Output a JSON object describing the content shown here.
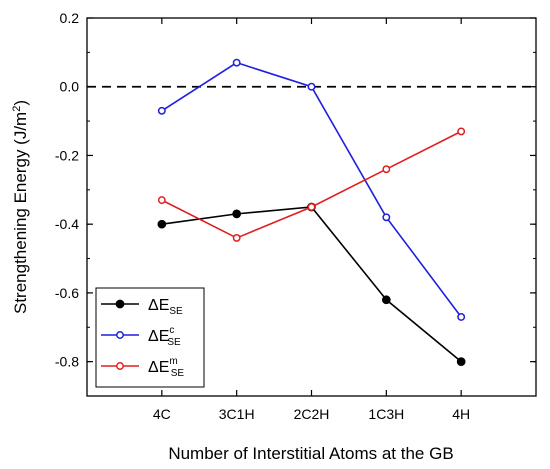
{
  "chart_data": {
    "type": "line",
    "categories": [
      "4C",
      "3C1H",
      "2C2H",
      "1C3H",
      "4H"
    ],
    "xlabel": "Number of Interstitial Atoms at the GB",
    "ylabel": "Strengthening Energy (J/m²)",
    "ylim": [
      -0.9,
      0.2
    ],
    "yticks": [
      0.2,
      0.0,
      -0.2,
      -0.4,
      -0.6,
      -0.8
    ],
    "ytick_labels": [
      "0.2",
      "0.0",
      "-0.2",
      "-0.4",
      "-0.6",
      "-0.8"
    ],
    "reference_line": {
      "y": 0.0,
      "style": "dashed",
      "color": "#000000"
    },
    "grid": false,
    "legend_position": "bottom-left",
    "series": [
      {
        "name": "ΔE_SE",
        "legend_main": "ΔE",
        "legend_sup": "",
        "legend_sub": "SE",
        "color": "#000000",
        "marker": "filled-circle",
        "values": [
          -0.4,
          -0.37,
          -0.35,
          -0.62,
          -0.8
        ]
      },
      {
        "name": "ΔE^c_SE",
        "legend_main": "ΔE",
        "legend_sup": "c",
        "legend_sub": "SE",
        "color": "#1f1fe0",
        "marker": "open-circle",
        "values": [
          -0.07,
          0.07,
          0.0,
          -0.38,
          -0.67
        ]
      },
      {
        "name": "ΔE^m_SE",
        "legend_main": "ΔE",
        "legend_sup": "m",
        "legend_sub": "SE",
        "color": "#e01f1f",
        "marker": "open-circle",
        "values": [
          -0.33,
          -0.44,
          -0.35,
          -0.24,
          -0.13
        ]
      }
    ]
  }
}
